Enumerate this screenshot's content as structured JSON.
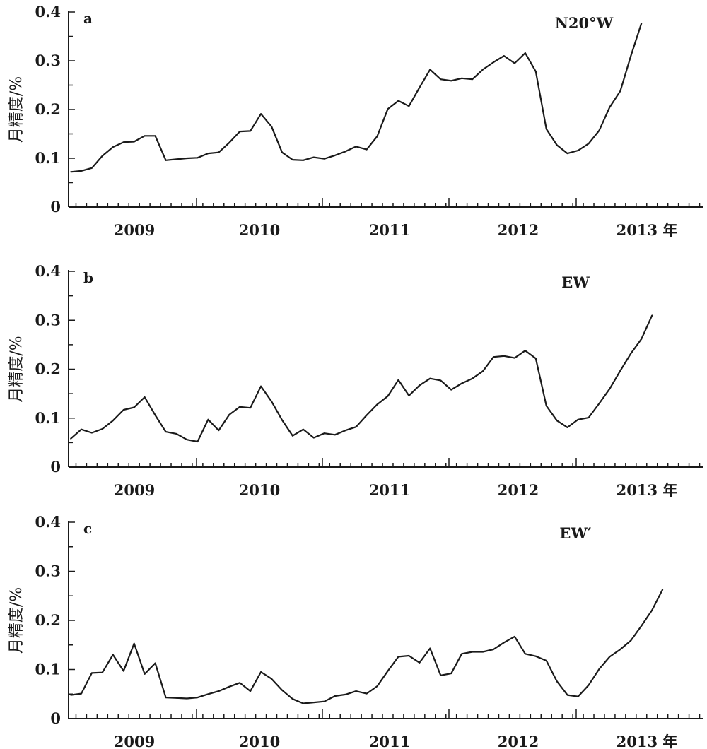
{
  "chart_data": [
    {
      "panel": "a",
      "type": "line",
      "title": "N20°W",
      "ylabel": "月精度/%",
      "ylim": [
        0,
        0.4
      ],
      "yticks": [
        "0",
        "0.1",
        "0.2",
        "0.3",
        "0.4"
      ],
      "xticks": [
        "2009",
        "2010",
        "2011",
        "2012",
        "2013 年"
      ],
      "series": [
        {
          "values": [
            0.072,
            0.074,
            0.08,
            0.105,
            0.123,
            0.133,
            0.134,
            0.146,
            0.146,
            0.096,
            0.098,
            0.1,
            0.101,
            0.11,
            0.112,
            0.132,
            0.155,
            0.156,
            0.191,
            0.165,
            0.112,
            0.097,
            0.096,
            0.102,
            0.099,
            0.106,
            0.114,
            0.124,
            0.118,
            0.145,
            0.201,
            0.218,
            0.207,
            0.245,
            0.282,
            0.262,
            0.259,
            0.264,
            0.262,
            0.282,
            0.297,
            0.31,
            0.295,
            0.316,
            0.278,
            0.16,
            0.127,
            0.11,
            0.116,
            0.13,
            0.157,
            0.205,
            0.238,
            0.31,
            0.377
          ]
        }
      ]
    },
    {
      "panel": "b",
      "type": "line",
      "title": "EW",
      "ylabel": "月精度/%",
      "ylim": [
        0,
        0.4
      ],
      "yticks": [
        "0",
        "0.1",
        "0.2",
        "0.3",
        "0.4"
      ],
      "xticks": [
        "2009",
        "2010",
        "2011",
        "2012",
        "2013 年"
      ],
      "series": [
        {
          "values": [
            0.058,
            0.077,
            0.07,
            0.078,
            0.095,
            0.117,
            0.122,
            0.143,
            0.106,
            0.072,
            0.068,
            0.056,
            0.052,
            0.097,
            0.075,
            0.107,
            0.123,
            0.121,
            0.165,
            0.134,
            0.096,
            0.064,
            0.077,
            0.06,
            0.069,
            0.066,
            0.075,
            0.082,
            0.106,
            0.128,
            0.145,
            0.178,
            0.146,
            0.167,
            0.181,
            0.177,
            0.158,
            0.171,
            0.181,
            0.196,
            0.225,
            0.227,
            0.223,
            0.238,
            0.222,
            0.125,
            0.095,
            0.081,
            0.097,
            0.101,
            0.13,
            0.16,
            0.197,
            0.232,
            0.262,
            0.31
          ]
        }
      ]
    },
    {
      "panel": "c",
      "type": "line",
      "title": "EW′",
      "ylabel": "月精度/%",
      "ylim": [
        0,
        0.4
      ],
      "yticks": [
        "0",
        "0.1",
        "0.2",
        "0.3",
        "0.4"
      ],
      "xticks": [
        "2009",
        "2010",
        "2011",
        "2012",
        "2013 年"
      ],
      "series": [
        {
          "values": [
            0.048,
            0.051,
            0.093,
            0.094,
            0.13,
            0.097,
            0.153,
            0.091,
            0.113,
            0.043,
            0.042,
            0.041,
            0.043,
            0.05,
            0.056,
            0.065,
            0.073,
            0.056,
            0.095,
            0.081,
            0.058,
            0.04,
            0.031,
            0.033,
            0.035,
            0.046,
            0.049,
            0.056,
            0.051,
            0.066,
            0.097,
            0.126,
            0.128,
            0.114,
            0.143,
            0.088,
            0.092,
            0.132,
            0.136,
            0.136,
            0.141,
            0.155,
            0.167,
            0.132,
            0.127,
            0.118,
            0.076,
            0.048,
            0.045,
            0.068,
            0.101,
            0.126,
            0.141,
            0.159,
            0.189,
            0.221,
            0.263
          ]
        }
      ]
    }
  ]
}
